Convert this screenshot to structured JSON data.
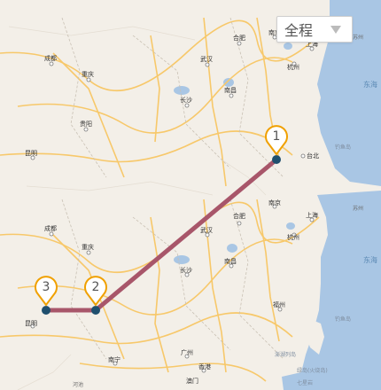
{
  "route_filter": {
    "selected": "全程",
    "caret": "chevron-down-icon"
  },
  "markers": [
    "1",
    "2",
    "3"
  ],
  "colors": {
    "route": "#a8566a",
    "land": "#f3efe8",
    "sea": "#a9c6e4",
    "road_major": "#f7c86a",
    "marker_fill": "#ffffff",
    "marker_border": "#f0a000",
    "anchor": "#1f4f6e"
  },
  "cities": {
    "chengdu_n": "成都",
    "chongqing_n": "重庆",
    "guiyang_n": "贵阳",
    "kunming_n": "昆明",
    "hefei_n": "合肥",
    "wuhan_n": "武汉",
    "changsha_n": "长沙",
    "nanchang_n": "南昌",
    "hangzhou_n": "杭州",
    "nanjing_n": "南京",
    "shanghai_n": "上海",
    "taibei_n": "台北",
    "suzhou_n": "苏州",
    "chengdu_s": "成都",
    "chongqing_s": "重庆",
    "kunming_s": "昆明",
    "hefei_s": "合肥",
    "wuhan_s": "武汉",
    "changsha_s": "长沙",
    "nanchang_s": "南昌",
    "hangzhou_s": "杭州",
    "nanjing_s": "南京",
    "shanghai_s": "上海",
    "suzhou_s": "苏州",
    "fuzhou": "福州",
    "guangzhou": "广州",
    "xianggang": "香港",
    "aomen": "澳门",
    "nanning": "南宁"
  },
  "map_labels": {
    "donghai_n": "东海",
    "donghai_s": "东海",
    "diaoyudao_n": "钓鱼岛",
    "diaoyudao_s": "钓鱼岛",
    "penghu": "澎湖列岛",
    "lvdao": "绿岛(火烧岛)",
    "qixing": "七星岩",
    "hedi": "河池"
  }
}
